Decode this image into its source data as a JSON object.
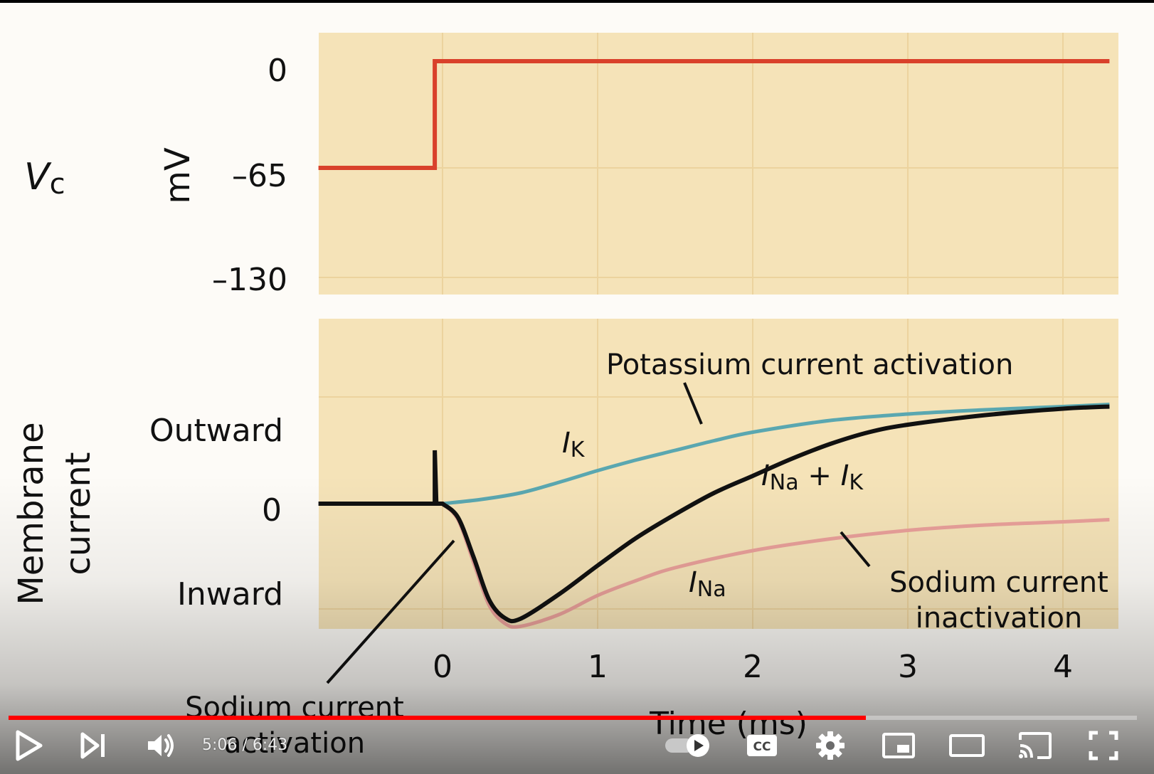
{
  "player": {
    "time_current": "5:06",
    "time_separator": " / ",
    "time_total": "6:43",
    "progress": 0.76,
    "accent_color": "#ff0000"
  },
  "controls": {
    "play": "play-icon",
    "next": "skip-next-icon",
    "volume": "volume-icon",
    "autoplay": "autoplay-toggle-icon",
    "captions": "closed-captions-icon",
    "settings": "gear-icon",
    "miniplayer": "miniplayer-icon",
    "theater": "theater-mode-icon",
    "cast": "cast-icon",
    "fullscreen": "fullscreen-icon"
  },
  "figure": {
    "top_panel": {
      "row_label_V": "V",
      "row_label_sub": "c",
      "unit": "mV",
      "ticks": [
        "0",
        "–65",
        "–130"
      ]
    },
    "bottom_panel": {
      "axis_label_line1": "Membrane",
      "axis_label_line2": "current",
      "outward": "Outward",
      "zero": "0",
      "inward": "Inward"
    },
    "x_ticks": [
      "0",
      "1",
      "2",
      "3",
      "4"
    ],
    "x_label": "Time (ms)",
    "annotations": {
      "potassium": "Potassium current activation",
      "ik_I": "I",
      "ik_sub": "K",
      "inak_I1": "I",
      "inak_sub1": "Na",
      "inak_plus": " + ",
      "inak_I2": "I",
      "inak_sub2": "K",
      "ina_I": "I",
      "ina_sub": "Na",
      "sodium_inact_1": "Sodium current",
      "sodium_inact_2": "inactivation",
      "sodium_act_1": "Sodium current",
      "sodium_act_2": "activation"
    },
    "colors": {
      "panel": "#f5e3b8",
      "grid": "#ecd39e",
      "voltage": "#d9412b",
      "ik": "#5aa7b0",
      "ina": "#e9a09a",
      "total": "#111111"
    }
  },
  "chart_data": [
    {
      "type": "line",
      "series": [
        {
          "values": [
            [
              -0.8,
              -65
            ],
            [
              -0.05,
              -65
            ],
            [
              -0.05,
              0
            ],
            [
              4.3,
              0
            ]
          ]
        }
      ],
      "x_ticks": [
        0,
        1,
        2,
        3,
        4
      ],
      "ylim": [
        -130,
        0
      ],
      "y_ticks": [
        0,
        -65,
        -130
      ]
    },
    {
      "type": "line",
      "series": [
        {
          "values": [
            [
              0,
              0
            ],
            [
              0.25,
              0.04
            ],
            [
              0.5,
              0.1
            ],
            [
              0.75,
              0.2
            ],
            [
              1,
              0.31
            ],
            [
              1.25,
              0.41
            ],
            [
              1.5,
              0.5
            ],
            [
              1.75,
              0.59
            ],
            [
              2,
              0.67
            ],
            [
              2.5,
              0.78
            ],
            [
              3,
              0.84
            ],
            [
              3.5,
              0.88
            ],
            [
              4,
              0.91
            ],
            [
              4.3,
              0.93
            ]
          ]
        },
        {
          "values": [
            [
              0,
              0
            ],
            [
              0.1,
              -0.15
            ],
            [
              0.2,
              -0.55
            ],
            [
              0.3,
              -0.95
            ],
            [
              0.4,
              -1.12
            ],
            [
              0.5,
              -1.15
            ],
            [
              0.75,
              -1.04
            ],
            [
              1,
              -0.86
            ],
            [
              1.25,
              -0.72
            ],
            [
              1.5,
              -0.6
            ],
            [
              2,
              -0.44
            ],
            [
              2.5,
              -0.33
            ],
            [
              3,
              -0.25
            ],
            [
              3.5,
              -0.2
            ],
            [
              4,
              -0.17
            ],
            [
              4.3,
              -0.15
            ]
          ]
        },
        {
          "values": [
            [
              -0.8,
              0
            ],
            [
              -0.05,
              0
            ],
            [
              -0.05,
              0.5
            ],
            [
              -0.04,
              0
            ],
            [
              0,
              0
            ],
            [
              0.1,
              -0.13
            ],
            [
              0.2,
              -0.5
            ],
            [
              0.3,
              -0.9
            ],
            [
              0.4,
              -1.07
            ],
            [
              0.5,
              -1.08
            ],
            [
              0.75,
              -0.85
            ],
            [
              1,
              -0.58
            ],
            [
              1.25,
              -0.32
            ],
            [
              1.5,
              -0.1
            ],
            [
              1.75,
              0.1
            ],
            [
              2,
              0.26
            ],
            [
              2.25,
              0.42
            ],
            [
              2.5,
              0.56
            ],
            [
              2.75,
              0.67
            ],
            [
              3,
              0.74
            ],
            [
              3.5,
              0.83
            ],
            [
              4,
              0.89
            ],
            [
              4.3,
              0.91
            ]
          ]
        }
      ],
      "x_ticks": [
        0,
        1,
        2,
        3,
        4
      ],
      "xlabel": "Time (ms)",
      "xlim": [
        -0.8,
        4.3
      ],
      "ylim": [
        -1.5,
        1.4
      ]
    }
  ]
}
